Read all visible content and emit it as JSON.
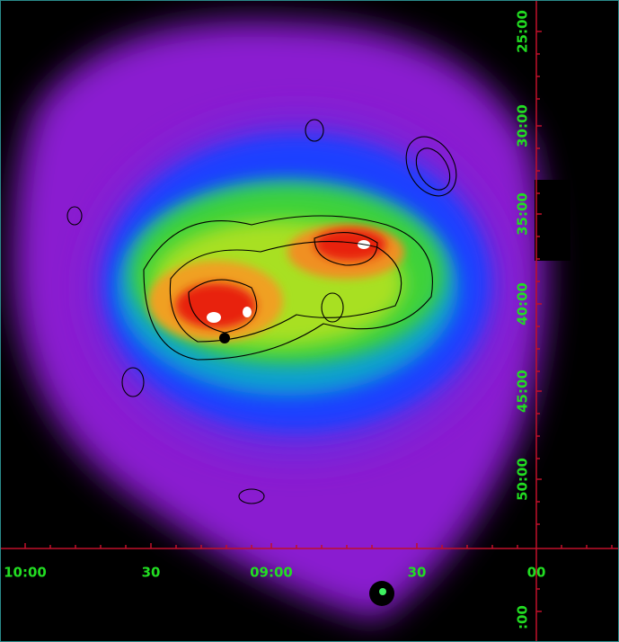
{
  "x_labels": [
    "10:00",
    "30",
    "09:00",
    "30",
    "00"
  ],
  "y_labels": [
    "25:00",
    "30:00",
    "35:00",
    "40:00",
    "45:00",
    "50:00",
    ":00"
  ]
}
